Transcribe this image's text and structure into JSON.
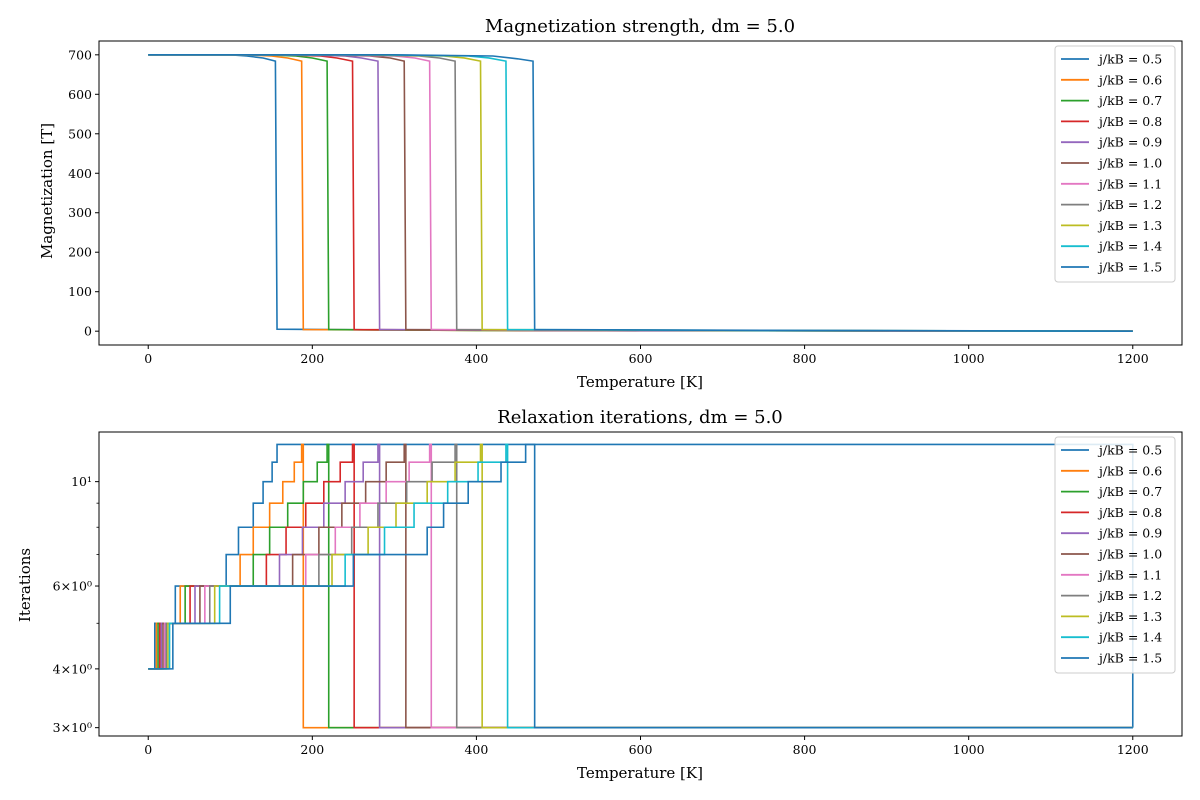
{
  "colors": [
    "#1f77b4",
    "#ff7f0e",
    "#2ca02c",
    "#d62728",
    "#9467bd",
    "#8c564b",
    "#e377c2",
    "#7f7f7f",
    "#bcbd22",
    "#17becf",
    "#1f77b4"
  ],
  "chart_data": [
    {
      "type": "line",
      "title": "Magnetization strength, dm = 5.0",
      "xlabel": "Temperature [K]",
      "ylabel": "Magnetization [T]",
      "xlim": [
        -60,
        1260
      ],
      "ylim": [
        -35,
        735
      ],
      "yscale": "linear",
      "grid": false,
      "legend_position": "top-right",
      "xticks": [
        0,
        200,
        400,
        600,
        800,
        1000,
        1200
      ],
      "xtick_labels": [
        "0",
        "200",
        "400",
        "600",
        "800",
        "1000",
        "1200"
      ],
      "yticks": [
        0,
        100,
        200,
        300,
        400,
        500,
        600,
        700
      ],
      "ytick_labels": [
        "0",
        "100",
        "200",
        "300",
        "400",
        "500",
        "600",
        "700"
      ],
      "series": [
        {
          "name": "j/kB = 0.5",
          "x": [
            0,
            100,
            120,
            140,
            155,
            157,
            300,
            600,
            1200
          ],
          "y": [
            700,
            700,
            697,
            692,
            684,
            5,
            3,
            1,
            0
          ]
        },
        {
          "name": "j/kB = 0.6",
          "x": [
            0,
            120,
            150,
            170,
            187,
            189,
            400,
            1200
          ],
          "y": [
            700,
            700,
            697,
            692,
            684,
            4,
            2,
            0
          ]
        },
        {
          "name": "j/kB = 0.7",
          "x": [
            0,
            140,
            180,
            200,
            218,
            220,
            400,
            1200
          ],
          "y": [
            700,
            700,
            697,
            692,
            684,
            4,
            2,
            0
          ]
        },
        {
          "name": "j/kB = 0.8",
          "x": [
            0,
            160,
            210,
            230,
            249,
            251,
            450,
            1200
          ],
          "y": [
            700,
            700,
            697,
            692,
            684,
            4,
            2,
            0
          ]
        },
        {
          "name": "j/kB = 0.9",
          "x": [
            0,
            180,
            240,
            260,
            280,
            282,
            500,
            1200
          ],
          "y": [
            700,
            700,
            697,
            692,
            684,
            4,
            2,
            0
          ]
        },
        {
          "name": "j/kB = 1.0",
          "x": [
            0,
            200,
            270,
            295,
            312,
            314,
            550,
            1200
          ],
          "y": [
            700,
            700,
            697,
            692,
            684,
            4,
            2,
            0
          ]
        },
        {
          "name": "j/kB = 1.1",
          "x": [
            0,
            220,
            300,
            325,
            343,
            345,
            600,
            1200
          ],
          "y": [
            700,
            700,
            697,
            692,
            684,
            4,
            2,
            0
          ]
        },
        {
          "name": "j/kB = 1.2",
          "x": [
            0,
            240,
            330,
            355,
            374,
            376,
            650,
            1200
          ],
          "y": [
            700,
            700,
            697,
            692,
            684,
            4,
            2,
            0
          ]
        },
        {
          "name": "j/kB = 1.3",
          "x": [
            0,
            260,
            360,
            385,
            405,
            407,
            700,
            1200
          ],
          "y": [
            700,
            700,
            697,
            692,
            684,
            4,
            2,
            0
          ]
        },
        {
          "name": "j/kB = 1.4",
          "x": [
            0,
            280,
            390,
            415,
            436,
            438,
            750,
            1200
          ],
          "y": [
            700,
            700,
            697,
            692,
            684,
            4,
            2,
            0
          ]
        },
        {
          "name": "j/kB = 1.5",
          "x": [
            0,
            300,
            420,
            450,
            469,
            471,
            800,
            1200
          ],
          "y": [
            700,
            700,
            697,
            690,
            684,
            4,
            2,
            0
          ]
        }
      ]
    },
    {
      "type": "line",
      "title": "Relaxation iterations, dm = 5.0",
      "xlabel": "Temperature [K]",
      "ylabel": "Iterations",
      "xlim": [
        -60,
        1260
      ],
      "ylim": [
        2.88,
        12.75
      ],
      "yscale": "log",
      "grid": false,
      "legend_position": "top-right",
      "xticks": [
        0,
        200,
        400,
        600,
        800,
        1000,
        1200
      ],
      "xtick_labels": [
        "0",
        "200",
        "400",
        "600",
        "800",
        "1000",
        "1200"
      ],
      "yticks_major": [
        3,
        4,
        6,
        10
      ],
      "ytick_labels": [
        "3×10⁰",
        "4×10⁰",
        "6×10⁰",
        "10¹"
      ],
      "yticks_minor": [
        5,
        7,
        8,
        9
      ],
      "series": [
        {
          "name": "j/kB = 0.5",
          "x": [
            0,
            8,
            33,
            95,
            110,
            128,
            140,
            151,
            157,
            1200
          ],
          "y": [
            4,
            5,
            6,
            7,
            8,
            9,
            10,
            11,
            12,
            3
          ]
        },
        {
          "name": "j/kB = 0.6",
          "x": [
            0,
            10,
            39,
            112,
            128,
            148,
            164,
            178,
            187,
            189,
            1200
          ],
          "y": [
            4,
            5,
            6,
            7,
            8,
            9,
            10,
            11,
            12,
            3,
            3
          ]
        },
        {
          "name": "j/kB = 0.7",
          "x": [
            0,
            12,
            45,
            128,
            148,
            170,
            189,
            206,
            218,
            220,
            1200
          ],
          "y": [
            4,
            5,
            6,
            7,
            8,
            9,
            10,
            11,
            12,
            3,
            3
          ]
        },
        {
          "name": "j/kB = 0.8",
          "x": [
            0,
            14,
            51,
            144,
            168,
            192,
            214,
            234,
            249,
            251,
            1200
          ],
          "y": [
            4,
            5,
            6,
            7,
            8,
            9,
            10,
            11,
            12,
            3,
            3
          ]
        },
        {
          "name": "j/kB = 0.9",
          "x": [
            0,
            16,
            57,
            160,
            188,
            214,
            240,
            262,
            280,
            282,
            1200
          ],
          "y": [
            4,
            5,
            6,
            7,
            8,
            9,
            10,
            11,
            12,
            3,
            3
          ]
        },
        {
          "name": "j/kB = 1.0",
          "x": [
            0,
            18,
            63,
            176,
            208,
            236,
            265,
            290,
            312,
            314,
            1200
          ],
          "y": [
            4,
            5,
            6,
            7,
            8,
            9,
            10,
            11,
            12,
            3,
            3
          ]
        },
        {
          "name": "j/kB = 1.1",
          "x": [
            0,
            20,
            69,
            192,
            228,
            258,
            290,
            318,
            343,
            345,
            1200
          ],
          "y": [
            4,
            5,
            6,
            7,
            8,
            9,
            10,
            11,
            12,
            3,
            3
          ]
        },
        {
          "name": "j/kB = 1.2",
          "x": [
            0,
            22,
            75,
            208,
            248,
            280,
            315,
            346,
            374,
            376,
            1200
          ],
          "y": [
            4,
            5,
            6,
            7,
            8,
            9,
            10,
            11,
            12,
            3,
            3
          ]
        },
        {
          "name": "j/kB = 1.3",
          "x": [
            0,
            24,
            81,
            224,
            268,
            302,
            340,
            374,
            405,
            407,
            1200
          ],
          "y": [
            4,
            5,
            6,
            7,
            8,
            9,
            10,
            11,
            12,
            3,
            3
          ]
        },
        {
          "name": "j/kB = 1.4",
          "x": [
            0,
            26,
            87,
            240,
            288,
            324,
            365,
            402,
            436,
            438,
            1200
          ],
          "y": [
            4,
            5,
            6,
            7,
            8,
            9,
            10,
            11,
            12,
            3,
            3
          ]
        },
        {
          "name": "j/kB = 1.5",
          "x": [
            0,
            30,
            100,
            250,
            340,
            360,
            390,
            430,
            460,
            469,
            471,
            1200
          ],
          "y": [
            4,
            5,
            6,
            7,
            8,
            9,
            10,
            11,
            12,
            12,
            3,
            3
          ]
        }
      ]
    }
  ]
}
